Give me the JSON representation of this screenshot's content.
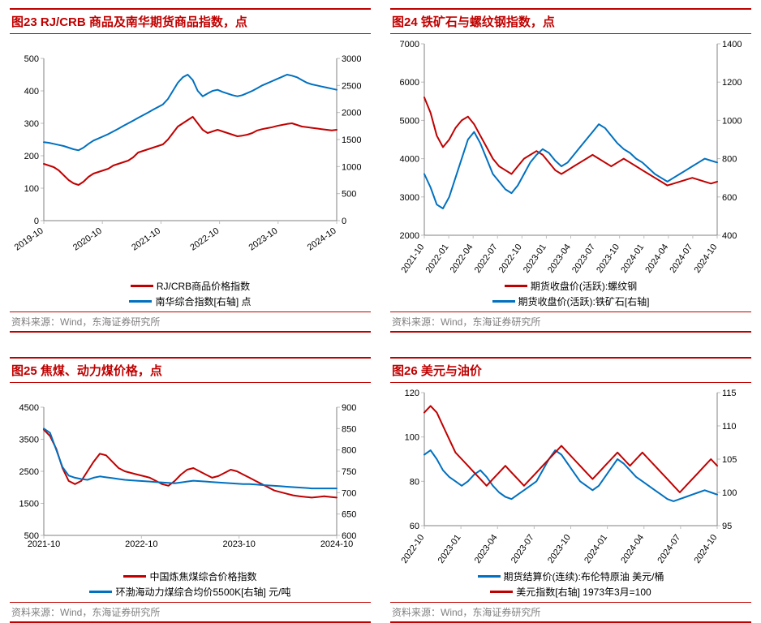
{
  "colors": {
    "red": "#c00000",
    "blue": "#0070c0",
    "grid": "#d9d9d9",
    "axis": "#808080",
    "text": "#000000",
    "source": "#808080"
  },
  "line_width": 2,
  "panels": [
    {
      "id": "c23",
      "title": "图23   RJ/CRB 商品及南华期货商品指数，点",
      "source": "资料来源：Wind，东海证券研究所",
      "x_labels": [
        "2019-10",
        "2020-10",
        "2021-10",
        "2022-10",
        "2023-10",
        "2024-10"
      ],
      "x_label_rotate": -35,
      "left_axis": {
        "min": 0,
        "max": 500,
        "step": 100
      },
      "right_axis": {
        "min": 0,
        "max": 3000,
        "step": 500
      },
      "legend": [
        {
          "color": "#c00000",
          "label": "RJ/CRB商品价格指数"
        },
        {
          "color": "#0070c0",
          "label": "南华综合指数[右轴] 点"
        }
      ],
      "series": [
        {
          "color": "#c00000",
          "axis": "left",
          "y": [
            175,
            170,
            165,
            155,
            140,
            125,
            115,
            110,
            120,
            135,
            145,
            150,
            155,
            160,
            170,
            175,
            180,
            185,
            195,
            210,
            215,
            220,
            225,
            230,
            235,
            250,
            270,
            290,
            300,
            310,
            320,
            300,
            280,
            270,
            275,
            280,
            275,
            270,
            265,
            260,
            262,
            265,
            270,
            278,
            282,
            285,
            288,
            292,
            295,
            298,
            300,
            295,
            290,
            288,
            286,
            284,
            282,
            280,
            278,
            280
          ]
        },
        {
          "color": "#0070c0",
          "axis": "right",
          "y": [
            1450,
            1440,
            1420,
            1400,
            1380,
            1350,
            1320,
            1300,
            1350,
            1420,
            1480,
            1520,
            1560,
            1600,
            1650,
            1700,
            1750,
            1800,
            1850,
            1900,
            1950,
            2000,
            2050,
            2100,
            2150,
            2250,
            2400,
            2550,
            2650,
            2700,
            2600,
            2400,
            2300,
            2350,
            2400,
            2420,
            2380,
            2350,
            2320,
            2300,
            2320,
            2360,
            2400,
            2450,
            2500,
            2540,
            2580,
            2620,
            2660,
            2700,
            2680,
            2650,
            2600,
            2550,
            2520,
            2500,
            2480,
            2460,
            2440,
            2420
          ]
        }
      ]
    },
    {
      "id": "c24",
      "title": "图24   铁矿石与螺纹钢指数，点",
      "source": "资料来源：Wind，东海证券研究所",
      "x_labels": [
        "2021-10",
        "2022-01",
        "2022-04",
        "2022-07",
        "2022-10",
        "2023-01",
        "2023-04",
        "2023-07",
        "2023-10",
        "2024-01",
        "2024-04",
        "2024-07",
        "2024-10"
      ],
      "x_label_rotate": -55,
      "left_axis": {
        "min": 2000,
        "max": 7000,
        "step": 1000
      },
      "right_axis": {
        "min": 400,
        "max": 1400,
        "step": 200
      },
      "legend": [
        {
          "color": "#c00000",
          "label": "期货收盘价(活跃):螺纹钢"
        },
        {
          "color": "#0070c0",
          "label": "期货收盘价(活跃):铁矿石[右轴]"
        }
      ],
      "series": [
        {
          "color": "#c00000",
          "axis": "left",
          "y": [
            5600,
            5200,
            4600,
            4300,
            4500,
            4800,
            5000,
            5100,
            4900,
            4600,
            4300,
            4000,
            3800,
            3700,
            3600,
            3800,
            4000,
            4100,
            4200,
            4100,
            3900,
            3700,
            3600,
            3700,
            3800,
            3900,
            4000,
            4100,
            4000,
            3900,
            3800,
            3900,
            4000,
            3900,
            3800,
            3700,
            3600,
            3500,
            3400,
            3300,
            3350,
            3400,
            3450,
            3500,
            3450,
            3400,
            3350,
            3400
          ]
        },
        {
          "color": "#0070c0",
          "axis": "right",
          "y": [
            720,
            650,
            560,
            540,
            600,
            700,
            800,
            900,
            940,
            880,
            800,
            720,
            680,
            640,
            620,
            660,
            720,
            780,
            820,
            850,
            830,
            790,
            760,
            780,
            820,
            860,
            900,
            940,
            980,
            960,
            920,
            880,
            850,
            830,
            800,
            780,
            750,
            720,
            700,
            680,
            700,
            720,
            740,
            760,
            780,
            800,
            790,
            780
          ]
        }
      ]
    },
    {
      "id": "c25",
      "title": "图25   焦煤、动力煤价格，点",
      "source": "资料来源：Wind，东海证券研究所",
      "x_labels": [
        "2021-10",
        "2022-10",
        "2023-10",
        "2024-10"
      ],
      "x_label_rotate": 0,
      "left_axis": {
        "min": 500,
        "max": 4500,
        "step": 1000
      },
      "right_axis": {
        "min": 600,
        "max": 900,
        "step": 50
      },
      "legend": [
        {
          "color": "#c00000",
          "label": "中国炼焦煤综合价格指数"
        },
        {
          "color": "#0070c0",
          "label": "环渤海动力煤综合均价5500K[右轴] 元/吨"
        }
      ],
      "series": [
        {
          "color": "#c00000",
          "axis": "left",
          "y": [
            3800,
            3600,
            3200,
            2600,
            2200,
            2100,
            2200,
            2500,
            2800,
            3050,
            3000,
            2800,
            2600,
            2500,
            2450,
            2400,
            2350,
            2300,
            2200,
            2100,
            2050,
            2200,
            2400,
            2550,
            2600,
            2500,
            2400,
            2300,
            2350,
            2450,
            2550,
            2500,
            2400,
            2300,
            2200,
            2100,
            2000,
            1900,
            1850,
            1800,
            1750,
            1720,
            1700,
            1680,
            1700,
            1720,
            1700,
            1680
          ]
        },
        {
          "color": "#0070c0",
          "axis": "right",
          "y": [
            850,
            840,
            800,
            760,
            740,
            735,
            732,
            730,
            735,
            738,
            736,
            734,
            732,
            730,
            729,
            728,
            727,
            726,
            725,
            724,
            723,
            722,
            724,
            726,
            728,
            727,
            726,
            725,
            724,
            723,
            722,
            721,
            720,
            720,
            719,
            718,
            717,
            716,
            715,
            714,
            713,
            712,
            711,
            710,
            710,
            710,
            710,
            710
          ]
        }
      ]
    },
    {
      "id": "c26",
      "title": "图26   美元与油价",
      "source": "资料来源：Wind，东海证券研究所",
      "x_labels": [
        "2022-10",
        "2023-01",
        "2023-04",
        "2023-07",
        "2023-10",
        "2024-01",
        "2024-04",
        "2024-07",
        "2024-10"
      ],
      "x_label_rotate": -55,
      "left_axis": {
        "min": 60,
        "max": 120,
        "step": 20
      },
      "right_axis": {
        "min": 95,
        "max": 115,
        "step": 5
      },
      "legend": [
        {
          "color": "#0070c0",
          "label": "期货结算价(连续):布伦特原油 美元/桶"
        },
        {
          "color": "#c00000",
          "label": "美元指数[右轴] 1973年3月=100"
        }
      ],
      "series": [
        {
          "color": "#0070c0",
          "axis": "left",
          "y": [
            92,
            94,
            90,
            85,
            82,
            80,
            78,
            80,
            83,
            85,
            82,
            78,
            75,
            73,
            72,
            74,
            76,
            78,
            80,
            85,
            90,
            94,
            92,
            88,
            84,
            80,
            78,
            76,
            78,
            82,
            86,
            90,
            88,
            85,
            82,
            80,
            78,
            76,
            74,
            72,
            71,
            72,
            73,
            74,
            75,
            76,
            75,
            74
          ]
        },
        {
          "color": "#c00000",
          "axis": "right",
          "y": [
            112,
            113,
            112,
            110,
            108,
            106,
            105,
            104,
            103,
            102,
            101,
            102,
            103,
            104,
            103,
            102,
            101,
            102,
            103,
            104,
            105,
            106,
            107,
            106,
            105,
            104,
            103,
            102,
            103,
            104,
            105,
            106,
            105,
            104,
            105,
            106,
            105,
            104,
            103,
            102,
            101,
            100,
            101,
            102,
            103,
            104,
            105,
            104
          ]
        }
      ]
    }
  ]
}
